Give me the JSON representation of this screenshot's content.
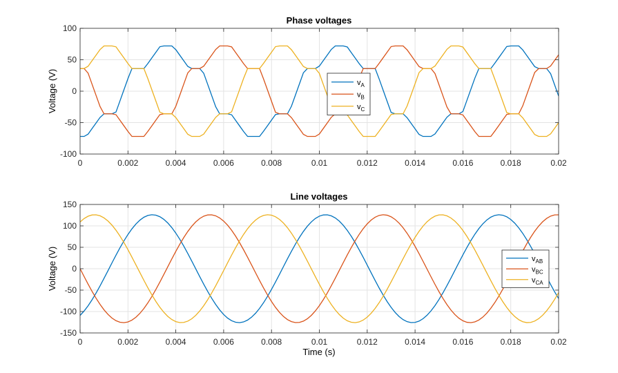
{
  "chart_data": [
    {
      "type": "line",
      "title": "Phase voltages",
      "xlabel": "",
      "ylabel": "Voltage (V)",
      "xlim": [
        0,
        0.02
      ],
      "ylim": [
        -100,
        100
      ],
      "xticks": [
        0,
        0.002,
        0.004,
        0.006,
        0.008,
        0.01,
        0.012,
        0.014,
        0.016,
        0.018,
        0.02
      ],
      "xtick_labels": [
        "0",
        "0.002",
        "0.004",
        "0.006",
        "0.008",
        "0.01",
        "0.012",
        "0.014",
        "0.016",
        "0.018",
        "0.02"
      ],
      "yticks": [
        -100,
        -50,
        0,
        50,
        100
      ],
      "ytick_labels": [
        "-100",
        "-50",
        "0",
        "50",
        "100"
      ],
      "grid": true,
      "legend_placement": "center",
      "waveform": "six-step",
      "amplitude": 72,
      "frequency_hz": 138,
      "sample_count": 121,
      "series": [
        {
          "name": "v",
          "name_sub": "A",
          "color": "#0072BD",
          "phase_deg": -90
        },
        {
          "name": "v",
          "name_sub": "B",
          "color": "#D95319",
          "phase_deg": 150
        },
        {
          "name": "v",
          "name_sub": "C",
          "color": "#EDB120",
          "phase_deg": 30
        }
      ]
    },
    {
      "type": "line",
      "title": "Line voltages",
      "xlabel": "Time (s)",
      "ylabel": "Voltage (V)",
      "xlim": [
        0,
        0.02
      ],
      "ylim": [
        -150,
        150
      ],
      "xticks": [
        0,
        0.002,
        0.004,
        0.006,
        0.008,
        0.01,
        0.012,
        0.014,
        0.016,
        0.018,
        0.02
      ],
      "xtick_labels": [
        "0",
        "0.002",
        "0.004",
        "0.006",
        "0.008",
        "0.01",
        "0.012",
        "0.014",
        "0.016",
        "0.018",
        "0.02"
      ],
      "yticks": [
        -150,
        -100,
        -50,
        0,
        50,
        100,
        150
      ],
      "ytick_labels": [
        "-150",
        "-100",
        "-50",
        "0",
        "50",
        "100",
        "150"
      ],
      "grid": true,
      "legend_placement": "east",
      "waveform": "sine",
      "amplitude": 126,
      "frequency_hz": 138,
      "sample_count": 121,
      "series": [
        {
          "name": "v",
          "name_sub": "AB",
          "color": "#0072BD",
          "phase_deg": -60
        },
        {
          "name": "v",
          "name_sub": "BC",
          "color": "#D95319",
          "phase_deg": 180
        },
        {
          "name": "v",
          "name_sub": "CA",
          "color": "#EDB120",
          "phase_deg": 60
        }
      ]
    }
  ]
}
